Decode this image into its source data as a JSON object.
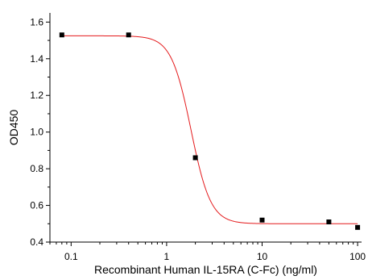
{
  "chart_data": {
    "type": "scatter",
    "title": "",
    "xlabel": "Recombinant Human IL-15RA (C-Fc) (ng/ml)",
    "ylabel": "OD450",
    "xscale": "log",
    "xlim": [
      0.06,
      110
    ],
    "ylim": [
      0.4,
      1.65
    ],
    "x_ticks": [
      0.1,
      1,
      10,
      100
    ],
    "x_tick_labels": [
      "0.1",
      "1",
      "10",
      "100"
    ],
    "y_ticks": [
      0.4,
      0.6,
      0.8,
      1.0,
      1.2,
      1.4,
      1.6
    ],
    "y_tick_labels": [
      "0.4",
      "0.6",
      "0.8",
      "1.0",
      "1.2",
      "1.4",
      "1.6"
    ],
    "grid": false,
    "series": [
      {
        "marker": "square",
        "color": "#000000",
        "x": [
          0.08,
          0.4,
          2,
          10,
          50,
          100
        ],
        "y": [
          1.53,
          1.53,
          0.86,
          0.52,
          0.51,
          0.48
        ]
      }
    ],
    "fit_curve": {
      "type": "4PL",
      "color": "#e41a1c",
      "top": 1.525,
      "bottom": 0.5,
      "ec50": 1.8,
      "hill": 4.2
    }
  }
}
